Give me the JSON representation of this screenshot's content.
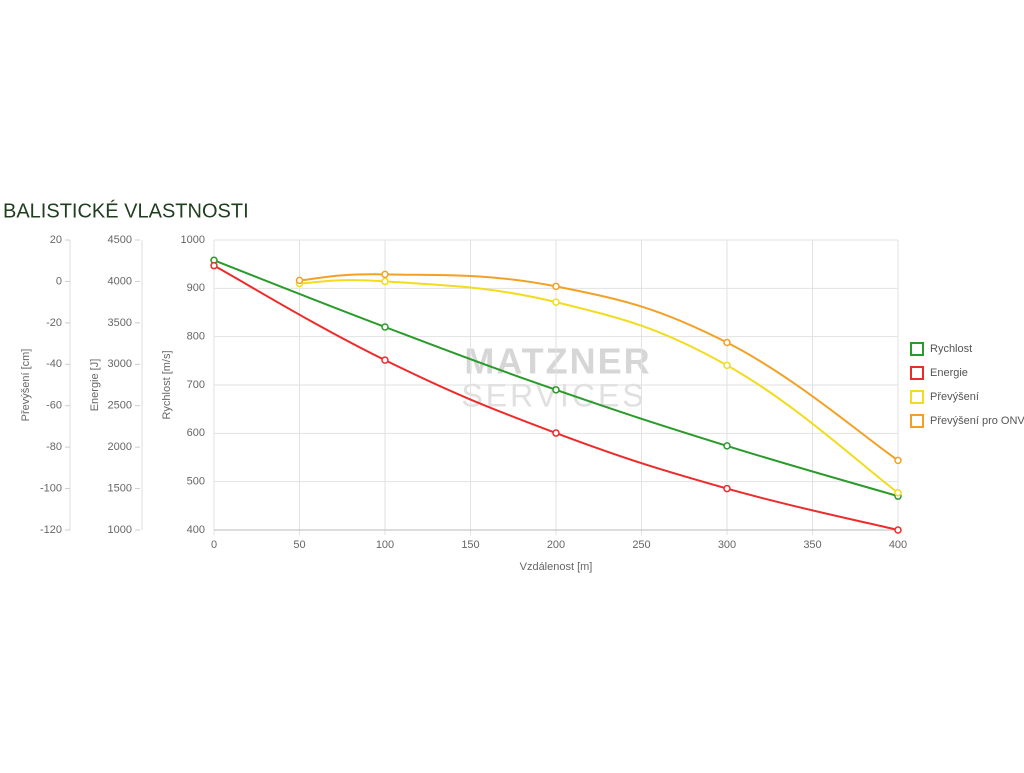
{
  "chart_data": {
    "type": "line",
    "title": "BALISTICKÉ VLASTNOSTI",
    "watermark": [
      "MATZNER",
      "SERVICES"
    ],
    "xlabel": "Vzdálenost [m]",
    "xlim": [
      0,
      400
    ],
    "xticks": [
      0,
      50,
      100,
      150,
      200,
      250,
      300,
      350,
      400
    ],
    "ylabel": "Rychlost [m/s]",
    "ylim": [
      400,
      1000
    ],
    "yticks": [
      400,
      500,
      600,
      700,
      800,
      900,
      1000
    ],
    "y2label": "Energie [J]",
    "y2lim": [
      1000,
      4500
    ],
    "y2ticks": [
      1000,
      1500,
      2000,
      2500,
      3000,
      3500,
      4000,
      4500
    ],
    "y3label": "Převýšení [cm]",
    "y3lim": [
      -120,
      20
    ],
    "y3ticks": [
      -120,
      -100,
      -80,
      -60,
      -40,
      -20,
      0,
      20
    ],
    "grid": true,
    "legend": "right",
    "series": [
      {
        "name": "Rychlost",
        "color": "#2a9a2a",
        "axis": "y",
        "x": [
          0,
          100,
          200,
          300,
          400
        ],
        "values": [
          958,
          820,
          690,
          574,
          470
        ]
      },
      {
        "name": "Energie",
        "color": "#ee2a2a",
        "axis": "y2",
        "x": [
          0,
          100,
          200,
          300,
          400
        ],
        "values": [
          4190,
          3050,
          2170,
          1500,
          1000
        ]
      },
      {
        "name": "Převýšení",
        "color": "#f2dc1e",
        "axis": "y3",
        "x": [
          50,
          100,
          200,
          300,
          400
        ],
        "values": [
          -1,
          0,
          -10,
          -40.5,
          -102
        ]
      },
      {
        "name": "Převýšení pro ONV",
        "color": "#f2a126",
        "axis": "y3",
        "x": [
          50,
          100,
          200,
          300,
          400
        ],
        "values": [
          0.5,
          3.4,
          -2.4,
          -29.5,
          -86.4
        ]
      }
    ]
  }
}
